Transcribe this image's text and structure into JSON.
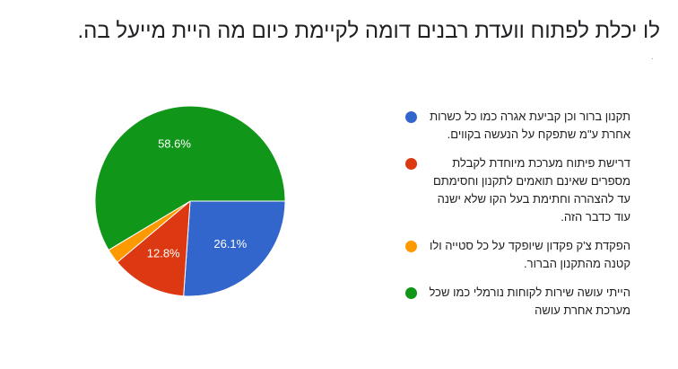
{
  "title": "לו יכלת לפתוח וועדת רבנים דומה לקיימת כיום מה היית מייעל בה.",
  "title_mark": ".",
  "chart_data": {
    "type": "pie",
    "title": "לו יכלת לפתוח וועדת רבנים דומה לקיימת כיום מה היית מייעל בה.",
    "slices": [
      {
        "label": "תקנון ברור וכן קביעת אגרה כמו כל כשרות אחרת ע\"מ שתפקח על הנעשה בקווים.",
        "value": 26.1,
        "display": "26.1%",
        "color": "#3366cc"
      },
      {
        "label": "דרישת פיתוח מערכת מיוחדת לקבלת מספרים שאינם תואמים לתקנון וחסימתם עד להצהרה וחתימת בעל הקו שלא ישנה עוד כדבר הזה.",
        "value": 12.8,
        "display": "12.8%",
        "color": "#dc3912"
      },
      {
        "label": "הפקדת צ'ק פקדון שיופקד על כל סטייה ולו קטנה מהתקנון הברור.",
        "value": 2.5,
        "display": "",
        "color": "#ff9900"
      },
      {
        "label": "הייתי עושה שירות לקוחות נורמלי כמו שכל מערכת אחרת עושה",
        "value": 58.6,
        "display": "58.6%",
        "color": "#109618"
      }
    ],
    "legend_position": "right"
  }
}
